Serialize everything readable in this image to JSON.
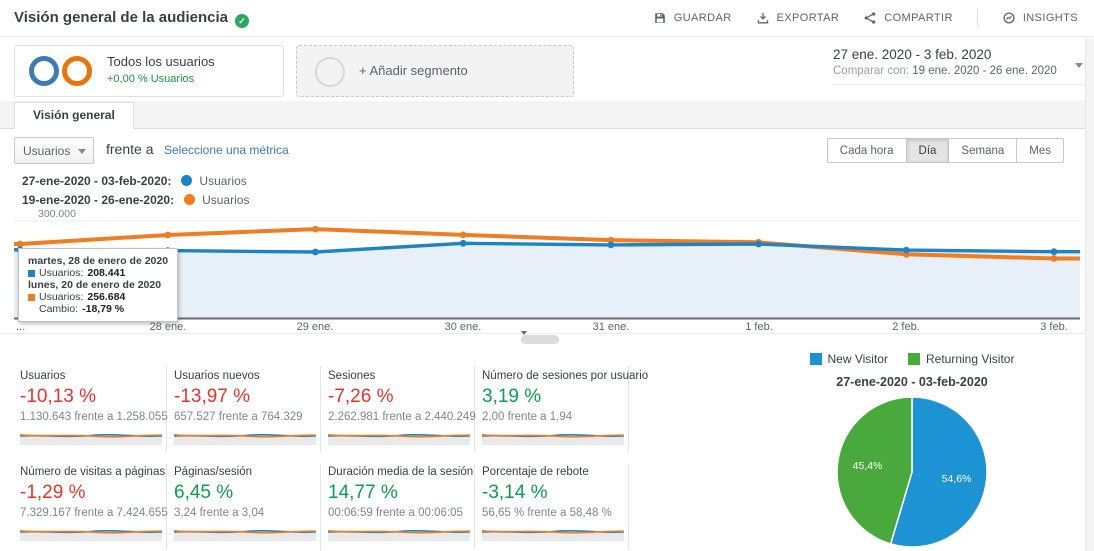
{
  "header": {
    "title": "Visión general de la audiencia",
    "actions": [
      {
        "label": "GUARDAR",
        "icon": "save-icon"
      },
      {
        "label": "EXPORTAR",
        "icon": "export-icon"
      },
      {
        "label": "COMPARTIR",
        "icon": "share-icon"
      },
      {
        "label": "INSIGHTS",
        "icon": "insights-icon"
      }
    ]
  },
  "segment_bar": {
    "all_users": {
      "title": "Todos los usuarios",
      "delta": "+0,00 % Usuarios"
    },
    "add_segment_label": "+ Añadir segmento"
  },
  "date_picker": {
    "range": "27 ene. 2020 - 3 feb. 2020",
    "compare_prefix": "Comparar con:",
    "compare_range": "19 ene. 2020 - 26 ene. 2020"
  },
  "tabs": {
    "active": "Visión general"
  },
  "toolbar": {
    "metric_dropdown": "Usuarios",
    "vs_label": "frente a",
    "select_metric": "Seleccione una métrica",
    "granularity": [
      {
        "label": "Cada hora",
        "active": false
      },
      {
        "label": "Día",
        "active": true
      },
      {
        "label": "Semana",
        "active": false
      },
      {
        "label": "Mes",
        "active": false
      }
    ]
  },
  "chart_legend": [
    {
      "range_label": "27-ene-2020 - 03-feb-2020:",
      "metric": "Usuarios",
      "color": "#1d83c4"
    },
    {
      "range_label": "19-ene-2020 - 26-ene-2020:",
      "metric": "Usuarios",
      "color": "#ef7d22"
    }
  ],
  "tooltip": {
    "current_date": "martes, 28 de enero de 2020",
    "current_metric": "Usuarios:",
    "current_value": "208.441",
    "compare_date": "lunes, 20 de enero de 2020",
    "compare_metric": "Usuarios:",
    "compare_value": "256.684",
    "change_label": "Cambio:",
    "change_value": "-18,79 %"
  },
  "chart_data": [
    {
      "type": "line",
      "categories": [
        "...",
        "28 ene.",
        "29 ene.",
        "30 ene.",
        "31 ene.",
        "1 feb.",
        "2 feb.",
        "3 feb."
      ],
      "series": [
        {
          "name": "Usuarios (27-ene-2020 - 03-feb-2020)",
          "color": "#1d83c4",
          "values": [
            211000,
            208441,
            204000,
            231000,
            226000,
            229000,
            210000,
            205000
          ]
        },
        {
          "name": "Usuarios (19-ene-2020 - 26-ene-2020)",
          "color": "#ef7d22",
          "values": [
            229000,
            256684,
            275000,
            257000,
            241000,
            234000,
            197000,
            184000
          ]
        }
      ],
      "ylim": [
        0,
        300000
      ],
      "ytick_labels": [
        "300.000"
      ],
      "area_series": 0,
      "area_color": "#e7f0f8",
      "grid": true,
      "legend_position": "top-left"
    },
    {
      "type": "pie",
      "title": "27-ene-2020 - 03-feb-2020",
      "labels": [
        "New Visitor",
        "Returning Visitor"
      ],
      "values": [
        54.6,
        45.4
      ],
      "display": [
        "54,6%",
        "45,4%"
      ],
      "colors": [
        "#1e93d3",
        "#4aa93c"
      ],
      "legend": [
        {
          "label": "New Visitor",
          "color": "#1e93d3"
        },
        {
          "label": "Returning Visitor",
          "color": "#4aa93c"
        }
      ],
      "legend_position": "top"
    }
  ],
  "scorecards": [
    {
      "title": "Usuarios",
      "pct": "-10,13 %",
      "color": "#e5352b",
      "compare": "1.130.643 frente a 1.258.055"
    },
    {
      "title": "Usuarios nuevos",
      "pct": "-13,97 %",
      "color": "#e5352b",
      "compare": "657.527 frente a 764.329"
    },
    {
      "title": "Sesiones",
      "pct": "-7,26 %",
      "color": "#e5352b",
      "compare": "2.262.981 frente a 2.440.249"
    },
    {
      "title": "Número de sesiones por usuario",
      "pct": "3,19 %",
      "color": "#0b9e4d",
      "compare": "2,00 frente a 1,94"
    },
    {
      "title": "Número de visitas a páginas",
      "pct": "-1,29 %",
      "color": "#e5352b",
      "compare": "7.329.167 frente a 7.424.655"
    },
    {
      "title": "Páginas/sesión",
      "pct": "6,45 %",
      "color": "#0b9e4d",
      "compare": "3,24 frente a 3,04"
    },
    {
      "title": "Duración media de la sesión",
      "pct": "14,77 %",
      "color": "#0b9e4d",
      "compare": "00:06:59 frente a 00:06:05"
    },
    {
      "title": "Porcentaje de rebote",
      "pct": "-3,14 %",
      "color": "#0b9e4d",
      "compare": "56,65 % frente a 58,48 %"
    }
  ]
}
